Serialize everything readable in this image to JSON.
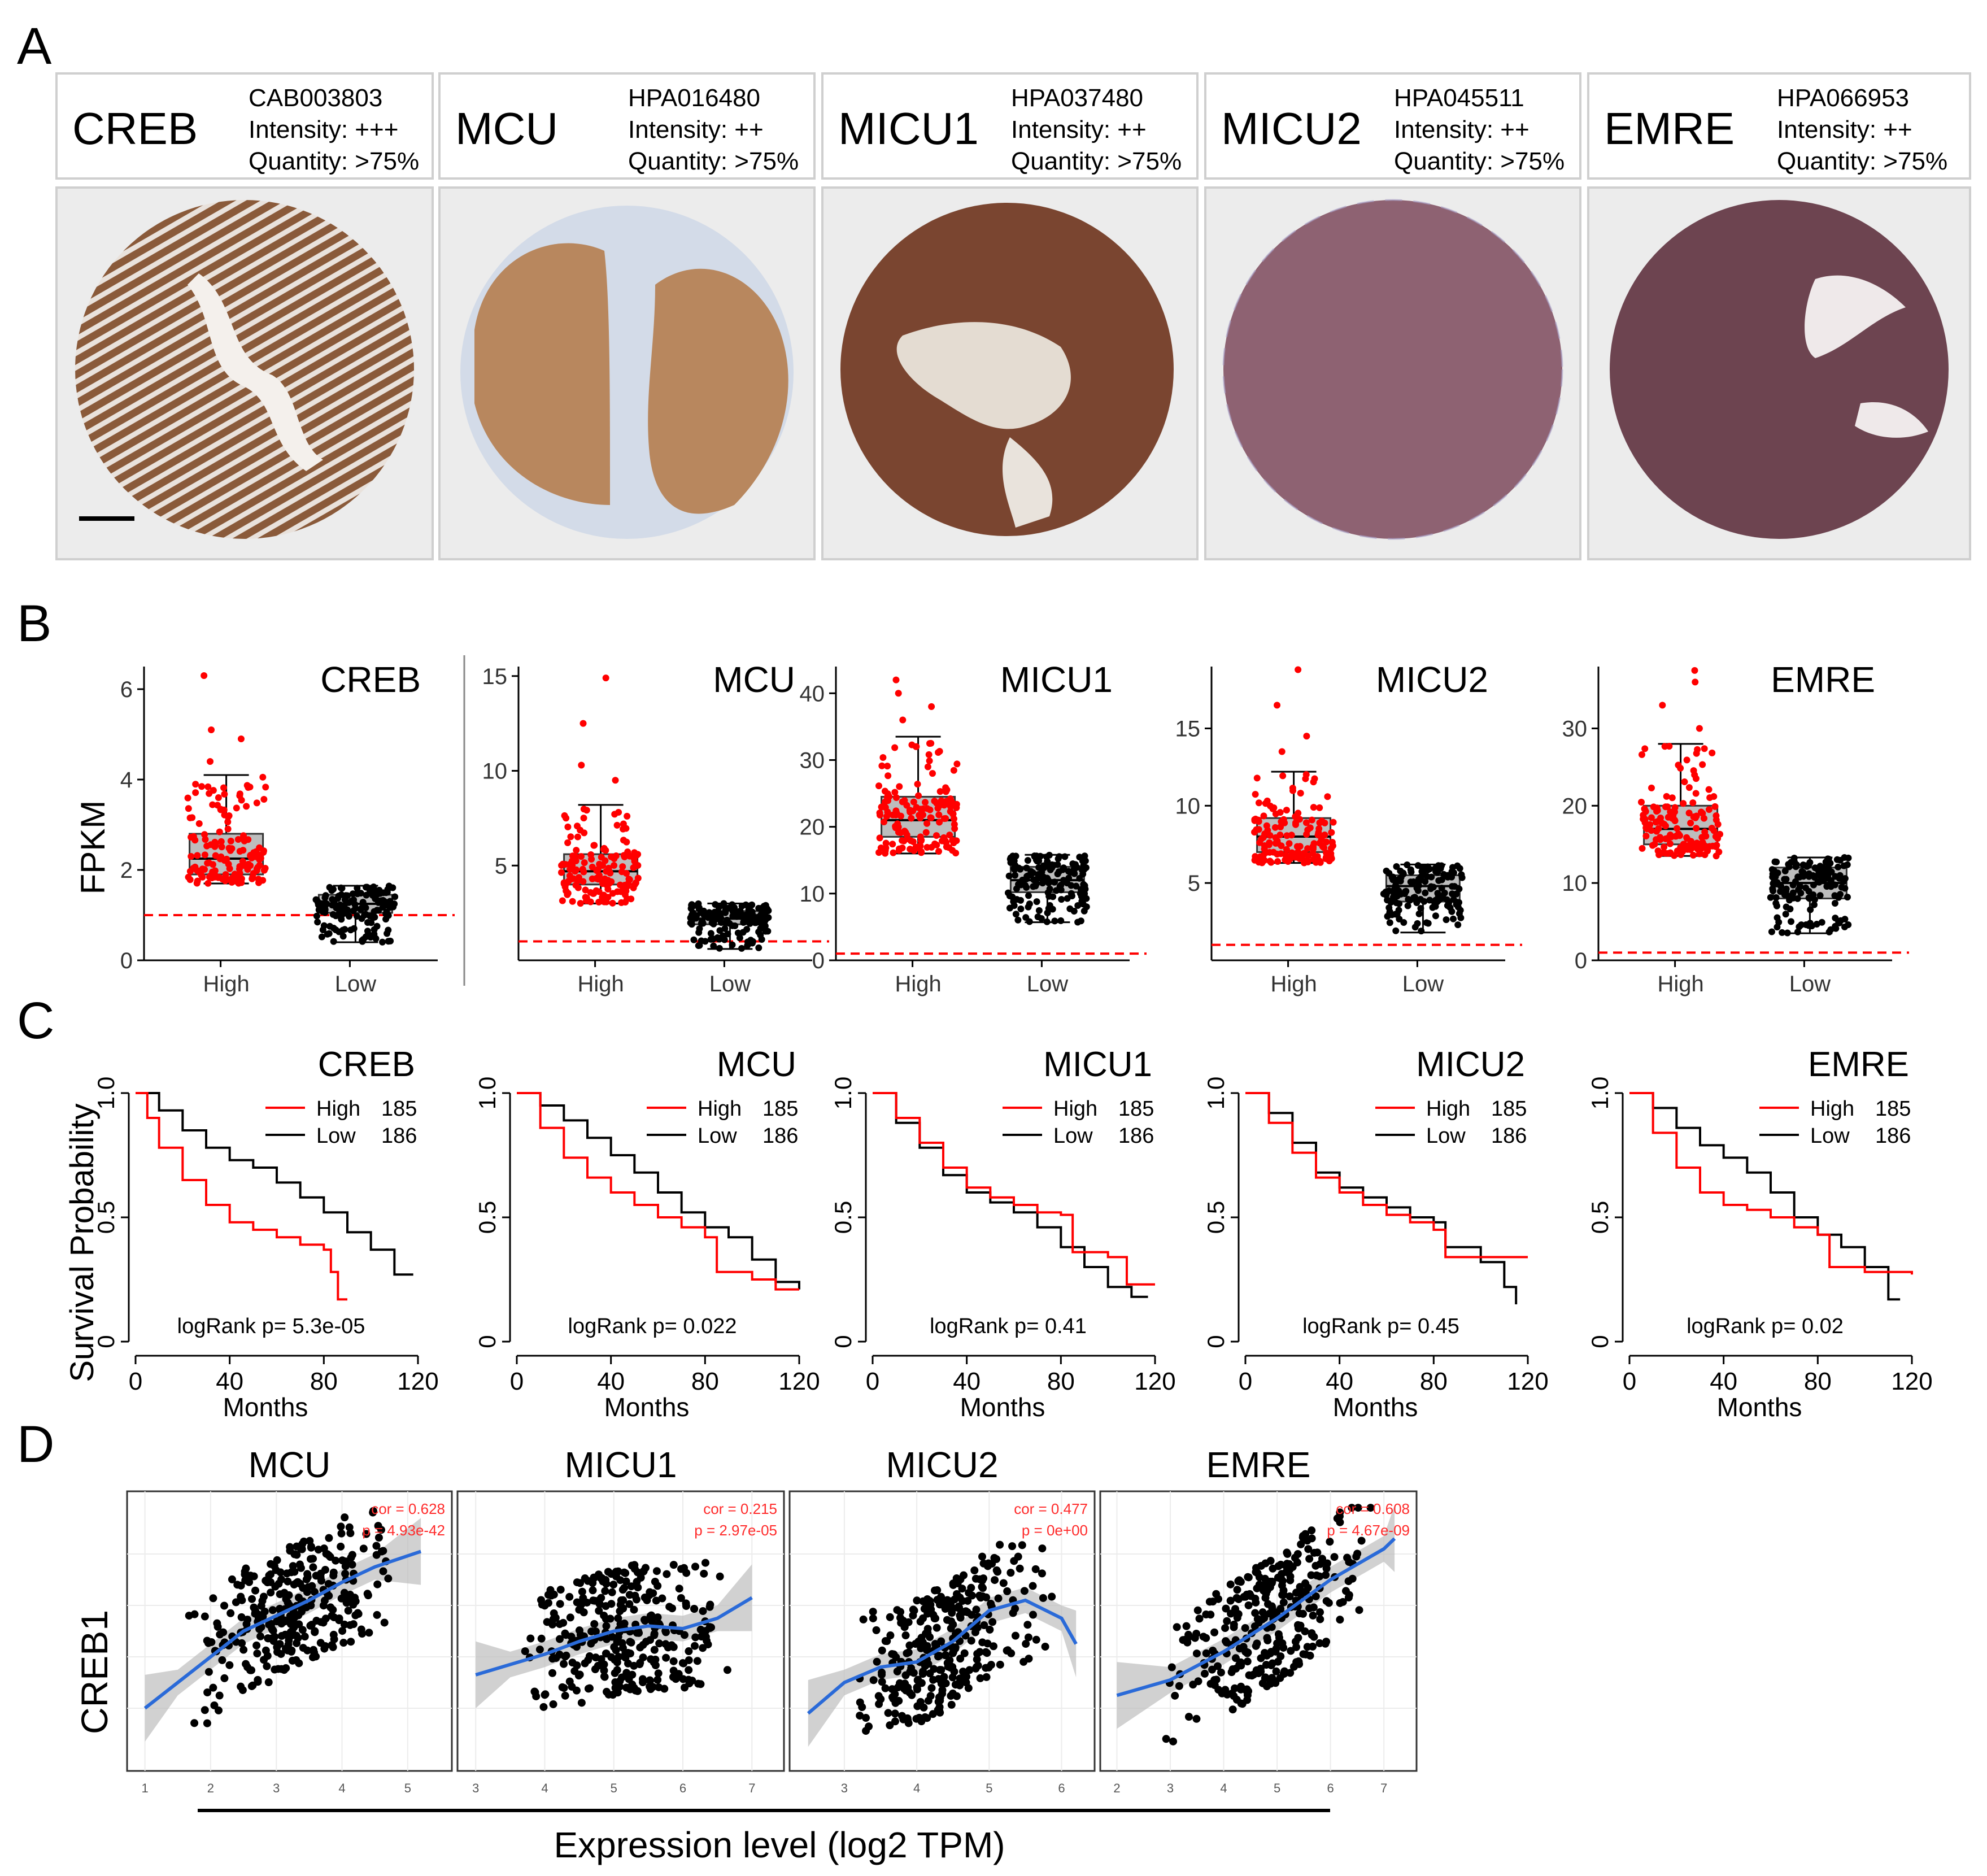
{
  "panel_labels": [
    "A",
    "B",
    "C",
    "D"
  ],
  "panel_a": {
    "headers": [
      {
        "gene": "CREB",
        "antibody": "CAB003803",
        "intensity": "Intensity: +++",
        "quantity": "Quantity: >75%"
      },
      {
        "gene": "MCU",
        "antibody": "HPA016480",
        "intensity": "Intensity: ++",
        "quantity": "Quantity: >75%"
      },
      {
        "gene": "MICU1",
        "antibody": "HPA037480",
        "intensity": "Intensity: ++",
        "quantity": "Quantity: >75%"
      },
      {
        "gene": "MICU2",
        "antibody": "HPA045511",
        "intensity": "Intensity: ++",
        "quantity": "Quantity: >75%"
      },
      {
        "gene": "EMRE",
        "antibody": "HPA066953",
        "intensity": "Intensity: ++",
        "quantity": "Quantity: >75%"
      }
    ],
    "stain_colors": [
      "#8a5a3a",
      "#b8875e",
      "#7a4530",
      "#8e6272",
      "#6d4450"
    ]
  },
  "chart_data": [
    {
      "type": "box",
      "panel": "B",
      "ylabel": "FPKM",
      "categories": [
        "High",
        "Low"
      ],
      "series_colors": {
        "High": "#ff0000",
        "Low": "#000000"
      },
      "threshold_line": {
        "value": 1,
        "color": "#ff0000",
        "style": "dashed"
      },
      "plots": [
        {
          "title": "CREB",
          "ylim": [
            0,
            6.5
          ],
          "yticks": [
            0,
            2,
            4,
            6
          ],
          "High": {
            "min": 1.7,
            "q1": 1.9,
            "median": 2.25,
            "q3": 2.8,
            "max": 4.1,
            "outliers": [
              4.4,
              4.9,
              5.1,
              6.3
            ]
          },
          "Low": {
            "min": 0.4,
            "q1": 1.05,
            "median": 1.25,
            "q3": 1.45,
            "max": 1.65
          }
        },
        {
          "title": "MCU",
          "ylim": [
            0,
            15.5
          ],
          "yticks": [
            5,
            10,
            15
          ],
          "High": {
            "min": 3.0,
            "q1": 4.0,
            "median": 4.7,
            "q3": 5.6,
            "max": 8.2,
            "outliers": [
              9.5,
              10.3,
              12.5,
              14.9
            ]
          },
          "Low": {
            "min": 0.6,
            "q1": 1.9,
            "median": 2.2,
            "q3": 2.6,
            "max": 3.0
          }
        },
        {
          "title": "MICU1",
          "ylim": [
            0,
            44
          ],
          "yticks": [
            0,
            10,
            20,
            30,
            40
          ],
          "High": {
            "min": 16,
            "q1": 18.5,
            "median": 21,
            "q3": 24.5,
            "max": 33.5,
            "outliers": [
              36,
              38,
              40,
              42
            ]
          },
          "Low": {
            "min": 5.7,
            "q1": 10.2,
            "median": 12,
            "q3": 14,
            "max": 15.8
          }
        },
        {
          "title": "MICU2",
          "ylim": [
            0,
            19
          ],
          "yticks": [
            5,
            10,
            15
          ],
          "High": {
            "min": 6.3,
            "q1": 7.0,
            "median": 8.0,
            "q3": 9.2,
            "max": 12.2,
            "outliers": [
              13.5,
              14.5,
              16.5,
              18.8
            ]
          },
          "Low": {
            "min": 1.8,
            "q1": 3.8,
            "median": 4.8,
            "q3": 5.5,
            "max": 6.2
          }
        },
        {
          "title": "EMRE",
          "ylim": [
            0,
            38
          ],
          "yticks": [
            0,
            10,
            20,
            30
          ],
          "High": {
            "min": 13.5,
            "q1": 15,
            "median": 17,
            "q3": 20,
            "max": 28,
            "outliers": [
              30,
              33,
              36,
              37.5
            ]
          },
          "Low": {
            "min": 3.5,
            "q1": 8,
            "median": 10,
            "q3": 12,
            "max": 13.3
          }
        }
      ]
    },
    {
      "type": "line",
      "panel": "C",
      "ylabel": "Survival Probability",
      "xlabel": "Months",
      "xlim": [
        0,
        120
      ],
      "ylim": [
        0,
        1
      ],
      "xticks": [
        0,
        40,
        80,
        120
      ],
      "yticks": [
        "0",
        "0.5",
        "1.0"
      ],
      "legend": [
        {
          "name": "High",
          "n": "185",
          "color": "#ff0000"
        },
        {
          "name": "Low",
          "n": "186",
          "color": "#000000"
        }
      ],
      "plots": [
        {
          "title": "CREB",
          "stat": "logRank p= 5.3e-05",
          "High": [
            [
              0,
              1
            ],
            [
              5,
              0.9
            ],
            [
              10,
              0.78
            ],
            [
              20,
              0.65
            ],
            [
              30,
              0.55
            ],
            [
              40,
              0.48
            ],
            [
              50,
              0.45
            ],
            [
              60,
              0.42
            ],
            [
              70,
              0.39
            ],
            [
              80,
              0.37
            ],
            [
              83,
              0.28
            ],
            [
              86,
              0.17
            ],
            [
              90,
              0.17
            ]
          ],
          "Low": [
            [
              0,
              1
            ],
            [
              10,
              0.93
            ],
            [
              20,
              0.85
            ],
            [
              30,
              0.78
            ],
            [
              40,
              0.73
            ],
            [
              50,
              0.7
            ],
            [
              60,
              0.64
            ],
            [
              70,
              0.58
            ],
            [
              80,
              0.52
            ],
            [
              90,
              0.44
            ],
            [
              100,
              0.37
            ],
            [
              110,
              0.27
            ],
            [
              118,
              0.27
            ]
          ]
        },
        {
          "title": "MCU",
          "stat": "logRank p= 0.022",
          "High": [
            [
              0,
              1
            ],
            [
              10,
              0.86
            ],
            [
              20,
              0.74
            ],
            [
              30,
              0.66
            ],
            [
              40,
              0.6
            ],
            [
              50,
              0.55
            ],
            [
              60,
              0.5
            ],
            [
              70,
              0.46
            ],
            [
              80,
              0.42
            ],
            [
              85,
              0.28
            ],
            [
              100,
              0.25
            ],
            [
              110,
              0.21
            ],
            [
              120,
              0.21
            ]
          ],
          "Low": [
            [
              0,
              1
            ],
            [
              10,
              0.95
            ],
            [
              20,
              0.89
            ],
            [
              30,
              0.82
            ],
            [
              40,
              0.75
            ],
            [
              50,
              0.68
            ],
            [
              60,
              0.6
            ],
            [
              70,
              0.52
            ],
            [
              80,
              0.46
            ],
            [
              90,
              0.42
            ],
            [
              100,
              0.33
            ],
            [
              110,
              0.24
            ],
            [
              120,
              0.21
            ]
          ]
        },
        {
          "title": "MICU1",
          "stat": "logRank p= 0.41",
          "High": [
            [
              0,
              1
            ],
            [
              10,
              0.9
            ],
            [
              20,
              0.8
            ],
            [
              30,
              0.7
            ],
            [
              40,
              0.62
            ],
            [
              50,
              0.58
            ],
            [
              60,
              0.55
            ],
            [
              70,
              0.52
            ],
            [
              80,
              0.51
            ],
            [
              85,
              0.36
            ],
            [
              100,
              0.34
            ],
            [
              108,
              0.23
            ],
            [
              120,
              0.23
            ]
          ],
          "Low": [
            [
              0,
              1
            ],
            [
              10,
              0.88
            ],
            [
              20,
              0.78
            ],
            [
              30,
              0.67
            ],
            [
              40,
              0.6
            ],
            [
              50,
              0.56
            ],
            [
              60,
              0.52
            ],
            [
              70,
              0.46
            ],
            [
              80,
              0.38
            ],
            [
              90,
              0.3
            ],
            [
              100,
              0.22
            ],
            [
              110,
              0.18
            ],
            [
              117,
              0.18
            ]
          ]
        },
        {
          "title": "MICU2",
          "stat": "logRank p= 0.45",
          "High": [
            [
              0,
              1
            ],
            [
              10,
              0.88
            ],
            [
              20,
              0.76
            ],
            [
              30,
              0.66
            ],
            [
              40,
              0.6
            ],
            [
              50,
              0.55
            ],
            [
              60,
              0.51
            ],
            [
              70,
              0.48
            ],
            [
              80,
              0.45
            ],
            [
              85,
              0.34
            ],
            [
              100,
              0.34
            ],
            [
              120,
              0.34
            ]
          ],
          "Low": [
            [
              0,
              1
            ],
            [
              10,
              0.92
            ],
            [
              20,
              0.8
            ],
            [
              30,
              0.68
            ],
            [
              40,
              0.62
            ],
            [
              50,
              0.58
            ],
            [
              60,
              0.54
            ],
            [
              70,
              0.5
            ],
            [
              80,
              0.48
            ],
            [
              85,
              0.38
            ],
            [
              100,
              0.32
            ],
            [
              110,
              0.22
            ],
            [
              115,
              0.15
            ]
          ]
        },
        {
          "title": "EMRE",
          "stat": "logRank p= 0.02",
          "High": [
            [
              0,
              1
            ],
            [
              10,
              0.84
            ],
            [
              20,
              0.7
            ],
            [
              30,
              0.6
            ],
            [
              40,
              0.55
            ],
            [
              50,
              0.53
            ],
            [
              60,
              0.5
            ],
            [
              70,
              0.46
            ],
            [
              80,
              0.43
            ],
            [
              85,
              0.3
            ],
            [
              100,
              0.28
            ],
            [
              120,
              0.27
            ]
          ],
          "Low": [
            [
              0,
              1
            ],
            [
              10,
              0.94
            ],
            [
              20,
              0.86
            ],
            [
              30,
              0.79
            ],
            [
              40,
              0.74
            ],
            [
              50,
              0.68
            ],
            [
              60,
              0.6
            ],
            [
              70,
              0.5
            ],
            [
              80,
              0.43
            ],
            [
              90,
              0.38
            ],
            [
              100,
              0.3
            ],
            [
              110,
              0.17
            ],
            [
              115,
              0.17
            ]
          ]
        }
      ]
    },
    {
      "type": "scatter",
      "panel": "D",
      "ylabel": "CREB1",
      "xlabel": "Expression level (log2 TPM)",
      "plots": [
        {
          "title": "MCU",
          "cor": "cor = 0.628",
          "p": "p = 4.93e-42",
          "xlim": [
            0.9,
            5.5
          ],
          "xticks": [
            1,
            2,
            3,
            4,
            5
          ],
          "ylim": [
            0,
            1
          ],
          "fit": [
            [
              1.0,
              0.2
            ],
            [
              1.5,
              0.3
            ],
            [
              2.0,
              0.4
            ],
            [
              2.5,
              0.5
            ],
            [
              3.0,
              0.56
            ],
            [
              3.5,
              0.62
            ],
            [
              4.0,
              0.69
            ],
            [
              4.5,
              0.75
            ],
            [
              5.2,
              0.81
            ]
          ]
        },
        {
          "title": "MICU1",
          "cor": "cor = 0.215",
          "p": "p = 2.97e-05",
          "xlim": [
            2.9,
            7.3
          ],
          "xticks": [
            3,
            4,
            5,
            6,
            7
          ],
          "ylim": [
            0,
            1
          ],
          "fit": [
            [
              3.0,
              0.33
            ],
            [
              3.5,
              0.37
            ],
            [
              4.0,
              0.41
            ],
            [
              4.5,
              0.46
            ],
            [
              5.0,
              0.5
            ],
            [
              5.5,
              0.52
            ],
            [
              6.0,
              0.51
            ],
            [
              6.5,
              0.55
            ],
            [
              7.0,
              0.63
            ]
          ]
        },
        {
          "title": "MICU2",
          "cor": "cor = 0.477",
          "p": "p = 0e+00",
          "xlim": [
            2.4,
            6.3
          ],
          "xticks": [
            3,
            4,
            5,
            6
          ],
          "ylim": [
            0,
            1
          ],
          "fit": [
            [
              2.5,
              0.18
            ],
            [
              3.0,
              0.3
            ],
            [
              3.5,
              0.36
            ],
            [
              4.0,
              0.38
            ],
            [
              4.5,
              0.46
            ],
            [
              5.0,
              0.58
            ],
            [
              5.5,
              0.62
            ],
            [
              6.0,
              0.55
            ],
            [
              6.2,
              0.45
            ]
          ]
        },
        {
          "title": "EMRE",
          "cor": "cor = 0.608",
          "p": "p = 4.67e-09",
          "xlim": [
            1.9,
            7.4
          ],
          "xticks": [
            2,
            3,
            4,
            5,
            6,
            7
          ],
          "ylim": [
            0,
            1
          ],
          "fit": [
            [
              2.0,
              0.25
            ],
            [
              3.0,
              0.31
            ],
            [
              4.0,
              0.42
            ],
            [
              5.0,
              0.55
            ],
            [
              6.0,
              0.7
            ],
            [
              7.0,
              0.82
            ],
            [
              7.2,
              0.86
            ]
          ]
        }
      ]
    }
  ]
}
